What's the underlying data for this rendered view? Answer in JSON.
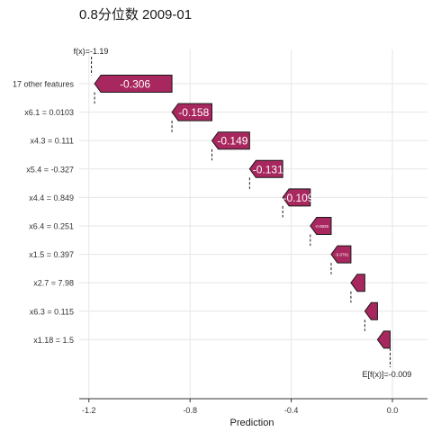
{
  "chart_data": {
    "type": "waterfall",
    "title": "0.8分位数 2009-01",
    "xlabel": "Prediction",
    "xlim": [
      -1.25,
      0.1
    ],
    "xticks": [
      -1.2,
      -0.8,
      -0.4,
      0.0
    ],
    "xtick_labels": [
      "-1.2",
      "-0.8",
      "-0.4",
      "0.0"
    ],
    "grid": true,
    "bar_color": "#A8275E",
    "start_value": -0.009,
    "start_label": "E[f(x)]=-0.009",
    "end_value": -1.19,
    "end_label": "f(x)=-1.19",
    "categories": [
      "17 other features",
      "x6.1 = 0.0103",
      "x4.3 = 0.111",
      "x5.4 = -0.327",
      "x4.4 = 0.849",
      "x6.4 = 0.251",
      "x1.5 = 0.397",
      "x2.7 = 7.98",
      "x6.3 = 0.115",
      "x1.18 = 1.5"
    ],
    "values": [
      -0.306,
      -0.158,
      -0.149,
      -0.131,
      -0.109,
      -0.0825,
      -0.0781,
      -0.055,
      -0.05,
      -0.05
    ],
    "value_labels": [
      "-0.306",
      "-0.158",
      "-0.149",
      "-0.131",
      "-0.109",
      "-0.0825",
      "-0.0781",
      "",
      "",
      ""
    ]
  }
}
